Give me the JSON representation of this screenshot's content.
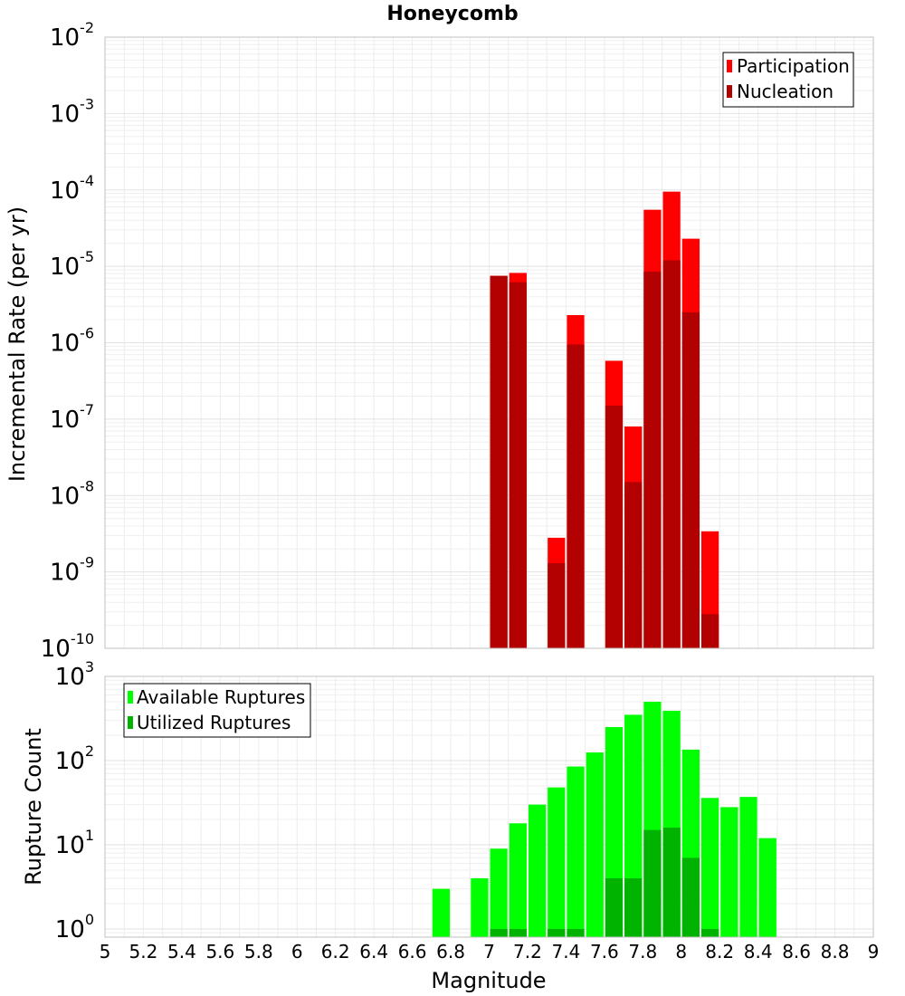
{
  "chart_data": [
    {
      "type": "bar",
      "title": "Honeycomb",
      "ylabel": "Incremental Rate (per yr)",
      "xlabel": "",
      "yscale": "log",
      "ylim": [
        1e-10,
        0.01
      ],
      "xlim": [
        5,
        9
      ],
      "grid": true,
      "legend_position": "top-right",
      "bin_width": 0.1,
      "colors": {
        "Participation": "#ff0000",
        "Nucleation": "#b30000"
      },
      "y_tick_exponents": [
        "-2",
        "-3",
        "-4",
        "-5",
        "-6",
        "-7",
        "-8",
        "-9",
        "-10"
      ],
      "y_tick_base": "10",
      "series": [
        {
          "name": "Participation",
          "x": [
            7.05,
            7.15,
            7.35,
            7.45,
            7.65,
            7.75,
            7.85,
            7.95,
            8.05,
            8.15
          ],
          "values": [
            7.5e-06,
            8.2e-06,
            2.8e-09,
            2.3e-06,
            5.8e-07,
            8e-08,
            5.5e-05,
            9.5e-05,
            2.3e-05,
            3.4e-09
          ]
        },
        {
          "name": "Nucleation",
          "x": [
            7.05,
            7.15,
            7.35,
            7.45,
            7.65,
            7.75,
            7.85,
            7.95,
            8.05,
            8.15
          ],
          "values": [
            7.5e-06,
            6.2e-06,
            1.3e-09,
            9.5e-07,
            1.5e-07,
            1.5e-08,
            8.5e-06,
            1.2e-05,
            2.5e-06,
            2.8e-10
          ]
        }
      ]
    },
    {
      "type": "bar",
      "title": "",
      "ylabel": "Rupture Count",
      "xlabel": "Magnitude",
      "yscale": "log",
      "ylim": [
        0.8,
        1000
      ],
      "xlim": [
        5,
        9
      ],
      "grid": true,
      "legend_position": "top-left",
      "bin_width": 0.1,
      "colors": {
        "Available Ruptures": "#00ff00",
        "Utilized Ruptures": "#00b300"
      },
      "y_tick_exponents": [
        "3",
        "2",
        "1",
        "0"
      ],
      "y_tick_base": "10",
      "x_ticks": [
        "5",
        "5.2",
        "5.4",
        "5.6",
        "5.8",
        "6",
        "6.2",
        "6.4",
        "6.6",
        "6.8",
        "7",
        "7.2",
        "7.4",
        "7.6",
        "7.8",
        "8",
        "8.2",
        "8.4",
        "8.6",
        "8.8",
        "9"
      ],
      "series": [
        {
          "name": "Available Ruptures",
          "x": [
            6.75,
            6.95,
            7.05,
            7.15,
            7.25,
            7.35,
            7.45,
            7.55,
            7.65,
            7.75,
            7.85,
            7.95,
            8.05,
            8.15,
            8.25,
            8.35,
            8.45
          ],
          "values": [
            3,
            4,
            9,
            18,
            30,
            48,
            85,
            125,
            250,
            350,
            500,
            390,
            135,
            36,
            28,
            37,
            12
          ]
        },
        {
          "name": "Utilized Ruptures",
          "x": [
            7.05,
            7.15,
            7.35,
            7.45,
            7.65,
            7.75,
            7.85,
            7.95,
            8.05,
            8.15
          ],
          "values": [
            1,
            1,
            1,
            1,
            4,
            4,
            15,
            16,
            7,
            1
          ]
        }
      ]
    }
  ]
}
